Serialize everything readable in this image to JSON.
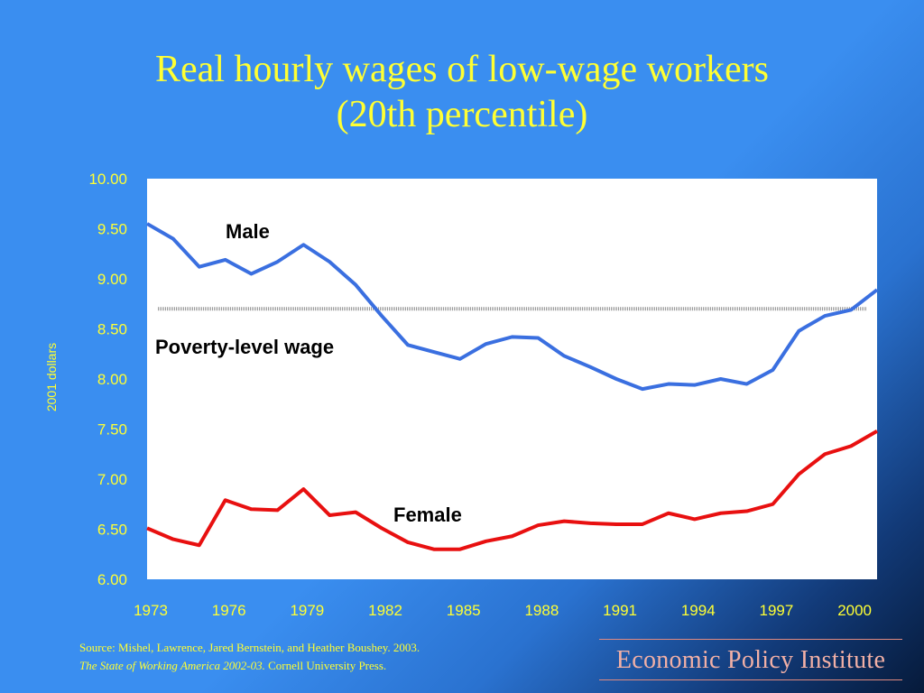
{
  "title_line1": "Real hourly wages of low-wage workers",
  "title_line2": "(20th percentile)",
  "source_line1": "Source:  Mishel, Lawrence, Jared Bernstein, and Heather Boushey. 2003.",
  "source_italic": "The State of Working America 2002-03.",
  "source_rest": " Cornell University Press.",
  "logo_text": "Economic Policy Institute",
  "colors": {
    "background": "#3a8ef0",
    "title": "#ffff33",
    "male": "#3a6fe0",
    "female": "#e81010",
    "poverty": "#999999",
    "plot_bg": "#ffffff"
  },
  "chart_data": {
    "type": "line",
    "ylabel": "2001 dollars",
    "xlabel": "",
    "ylim": [
      6.0,
      10.0
    ],
    "xlim": [
      1973,
      2001
    ],
    "yticks": [
      "10.00",
      "9.50",
      "9.00",
      "8.50",
      "8.00",
      "7.50",
      "7.00",
      "6.50",
      "6.00"
    ],
    "xticks": [
      "1973",
      "1976",
      "1979",
      "1982",
      "1985",
      "1988",
      "1991",
      "1994",
      "1997",
      "2000"
    ],
    "grid": false,
    "x": [
      1973,
      1974,
      1975,
      1976,
      1977,
      1978,
      1979,
      1980,
      1981,
      1982,
      1983,
      1984,
      1985,
      1986,
      1987,
      1988,
      1989,
      1990,
      1991,
      1992,
      1993,
      1994,
      1995,
      1996,
      1997,
      1998,
      1999,
      2000,
      2001
    ],
    "series": [
      {
        "name": "Male",
        "values": [
          9.55,
          9.4,
          9.12,
          9.19,
          9.05,
          9.17,
          9.34,
          9.17,
          8.94,
          8.63,
          8.34,
          8.27,
          8.2,
          8.35,
          8.42,
          8.41,
          8.23,
          8.12,
          8.0,
          7.9,
          7.95,
          7.94,
          8.0,
          7.95,
          8.09,
          8.48,
          8.63,
          8.69,
          8.89
        ]
      },
      {
        "name": "Female",
        "values": [
          6.51,
          6.4,
          6.34,
          6.79,
          6.7,
          6.69,
          6.9,
          6.64,
          6.67,
          6.51,
          6.37,
          6.3,
          6.3,
          6.38,
          6.43,
          6.54,
          6.58,
          6.56,
          6.55,
          6.55,
          6.66,
          6.6,
          6.66,
          6.68,
          6.75,
          7.05,
          7.25,
          7.33,
          7.48
        ]
      }
    ],
    "reference_line": {
      "name": "Poverty-level wage",
      "value": 8.7
    },
    "annotations": [
      "Male",
      "Poverty-level wage",
      "Female"
    ]
  }
}
